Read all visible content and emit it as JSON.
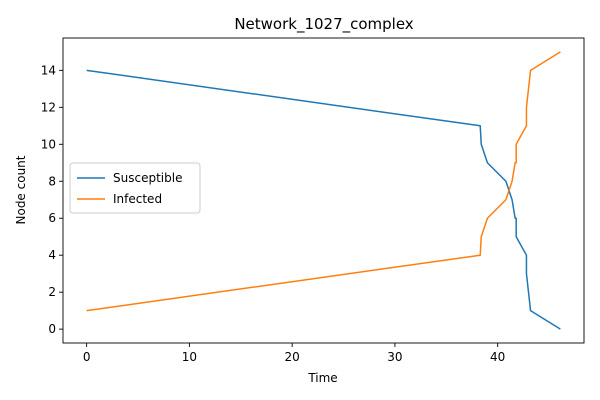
{
  "chart_data": {
    "type": "line",
    "title": "Network_1027_complex",
    "xlabel": "Time",
    "ylabel": "Node count",
    "xlim": [
      -2.3,
      48.4
    ],
    "ylim": [
      -0.75,
      15.75
    ],
    "xticks": [
      0,
      10,
      20,
      30,
      40
    ],
    "yticks": [
      0,
      2,
      4,
      6,
      8,
      10,
      12,
      14
    ],
    "grid": false,
    "legend_position": "center-left",
    "series": [
      {
        "name": "Susceptible",
        "color": "#1f77b4",
        "x": [
          0,
          38.3,
          38.4,
          39.0,
          40.8,
          41.4,
          41.7,
          41.8,
          41.8,
          42.8,
          42.8,
          43.2,
          46.1
        ],
        "y": [
          14,
          11,
          10,
          9,
          8,
          7,
          6,
          6,
          5,
          4,
          3,
          1,
          0
        ]
      },
      {
        "name": "Infected",
        "color": "#ff7f0e",
        "x": [
          0,
          38.3,
          38.4,
          39.0,
          40.8,
          41.4,
          41.7,
          41.8,
          41.8,
          42.8,
          42.8,
          43.2,
          46.1
        ],
        "y": [
          1,
          4,
          5,
          6,
          7,
          8,
          9,
          9,
          10,
          11,
          12,
          14,
          15
        ]
      }
    ]
  }
}
